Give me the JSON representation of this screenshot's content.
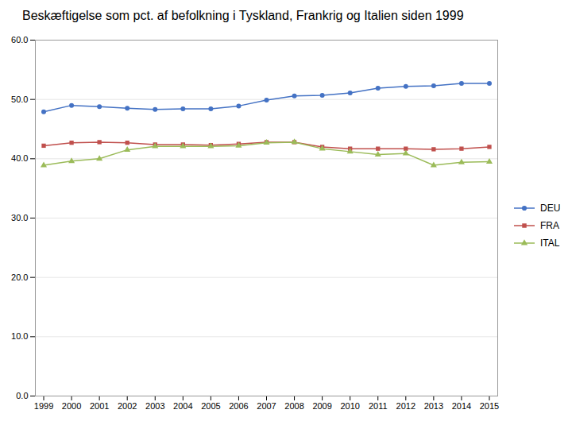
{
  "chart_data": {
    "type": "line",
    "title": "Beskæftigelse som pct. af befolkning i Tyskland, Frankrig og Italien siden 1999",
    "x": [
      1999,
      2000,
      2001,
      2002,
      2003,
      2004,
      2005,
      2006,
      2007,
      2008,
      2009,
      2010,
      2011,
      2012,
      2013,
      2014,
      2015
    ],
    "series": [
      {
        "name": "DEU",
        "color": "#4472C4",
        "marker": "circle",
        "values": [
          47.9,
          49.0,
          48.8,
          48.5,
          48.3,
          48.4,
          48.4,
          48.9,
          49.9,
          50.6,
          50.7,
          51.1,
          51.9,
          52.2,
          52.3,
          52.7,
          52.7
        ]
      },
      {
        "name": "FRA",
        "color": "#C0504D",
        "marker": "square",
        "values": [
          42.2,
          42.7,
          42.8,
          42.7,
          42.4,
          42.4,
          42.3,
          42.5,
          42.8,
          42.8,
          42.0,
          41.7,
          41.7,
          41.7,
          41.6,
          41.7,
          42.0
        ]
      },
      {
        "name": "ITAL",
        "color": "#9BBB59",
        "marker": "triangle",
        "values": [
          38.9,
          39.6,
          40.0,
          41.5,
          42.1,
          42.1,
          42.1,
          42.2,
          42.7,
          42.8,
          41.7,
          41.2,
          40.7,
          40.9,
          38.9,
          39.4,
          39.5
        ]
      }
    ],
    "xlim": [
      1998.7,
      2015.3
    ],
    "xticks": [
      1999,
      2000,
      2001,
      2002,
      2003,
      2004,
      2005,
      2006,
      2007,
      2008,
      2009,
      2010,
      2011,
      2012,
      2013,
      2014,
      2015
    ],
    "ylim": [
      0.0,
      60.0
    ],
    "yticks": [
      {
        "value": 0,
        "label": "0.0"
      },
      {
        "value": 10,
        "label": "10.0"
      },
      {
        "value": 20,
        "label": "20.0"
      },
      {
        "value": 30,
        "label": "30.0"
      },
      {
        "value": 40,
        "label": "40.0"
      },
      {
        "value": 50,
        "label": "50.0"
      },
      {
        "value": 60,
        "label": "60.0"
      }
    ],
    "grid": true,
    "legend": "right"
  }
}
